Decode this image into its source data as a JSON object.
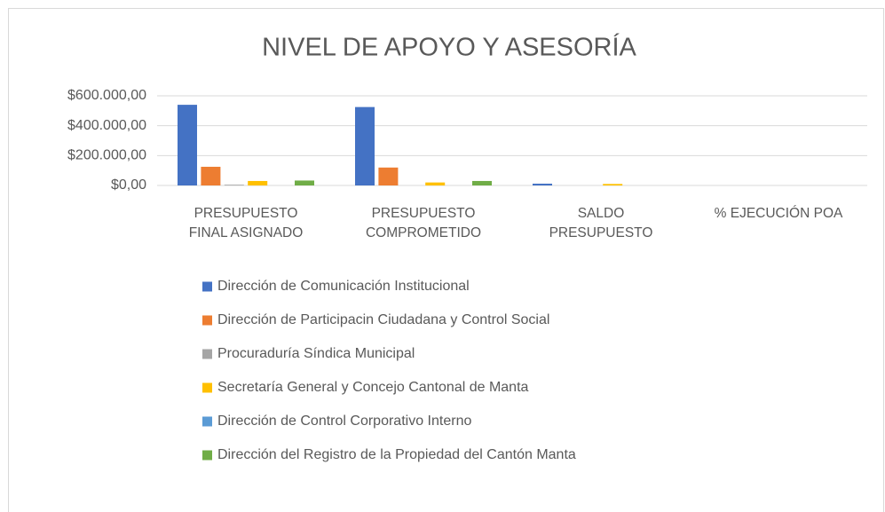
{
  "chart_data": {
    "type": "bar",
    "title": "NIVEL DE APOYO Y ASESORÍA",
    "categories": [
      "PRESUPUESTO FINAL ASIGNADO",
      "PRESUPUESTO COMPROMETIDO",
      "SALDO PRESUPUESTO",
      "% EJECUCIÓN POA"
    ],
    "series": [
      {
        "name": "Dirección de Comunicación Institucional",
        "color": "#4472c4",
        "values": [
          540000,
          525000,
          12000,
          0
        ]
      },
      {
        "name": "Dirección de Participacin Ciudadana y Control Social",
        "color": "#ed7d31",
        "values": [
          125000,
          120000,
          0,
          0
        ]
      },
      {
        "name": "Procuraduría Síndica Municipal",
        "color": "#a5a5a5",
        "values": [
          5000,
          0,
          0,
          0
        ]
      },
      {
        "name": "Secretaría General y Concejo Cantonal de Manta",
        "color": "#ffc000",
        "values": [
          30000,
          20000,
          10000,
          0
        ]
      },
      {
        "name": "Dirección de Control Corporativo Interno",
        "color": "#5b9bd5",
        "values": [
          0,
          0,
          0,
          0
        ]
      },
      {
        "name": "Dirección del Registro de la Propiedad del Cantón Manta",
        "color": "#70ad47",
        "values": [
          33000,
          30000,
          0,
          0
        ]
      }
    ],
    "ylim": [
      0,
      600000
    ],
    "yticks": [
      {
        "value": 0,
        "label": "$0,00"
      },
      {
        "value": 200000,
        "label": "$200.000,00"
      },
      {
        "value": 400000,
        "label": "$400.000,00"
      },
      {
        "value": 600000,
        "label": "$600.000,00"
      }
    ],
    "grid": true,
    "legend": "bottom"
  }
}
